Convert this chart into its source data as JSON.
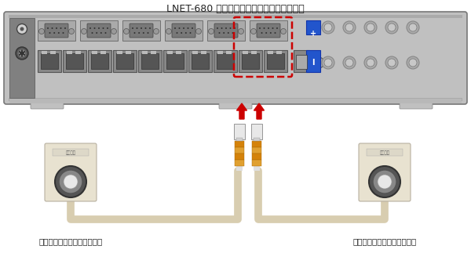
{
  "title": "LNET-680 スチューデントユニット（背面）",
  "title_fontsize": 9,
  "label_left": "学生用ファンクションボタン",
  "label_right": "学生用ファンクションボタン",
  "label_fontsize": 7.5,
  "bg_color": "#ffffff",
  "unit_color": "#c0c0c0",
  "unit_border": "#888888",
  "cable_color": "#d8cdb0",
  "orange_color": "#d4820a",
  "orange_light": "#e0a030",
  "red_arrow": "#cc0000",
  "highlight_rect": "#cc0000",
  "button_body": "#e8e2d0",
  "button_body_border": "#b8b0a0",
  "button_ring_outer": "#333333",
  "connector_gray": "#909090",
  "dark_gray": "#686868",
  "port_bg": "#888888",
  "port_inner": "#666666",
  "blue_btn": "#2255cc",
  "small_circle": "#aaaaaa"
}
